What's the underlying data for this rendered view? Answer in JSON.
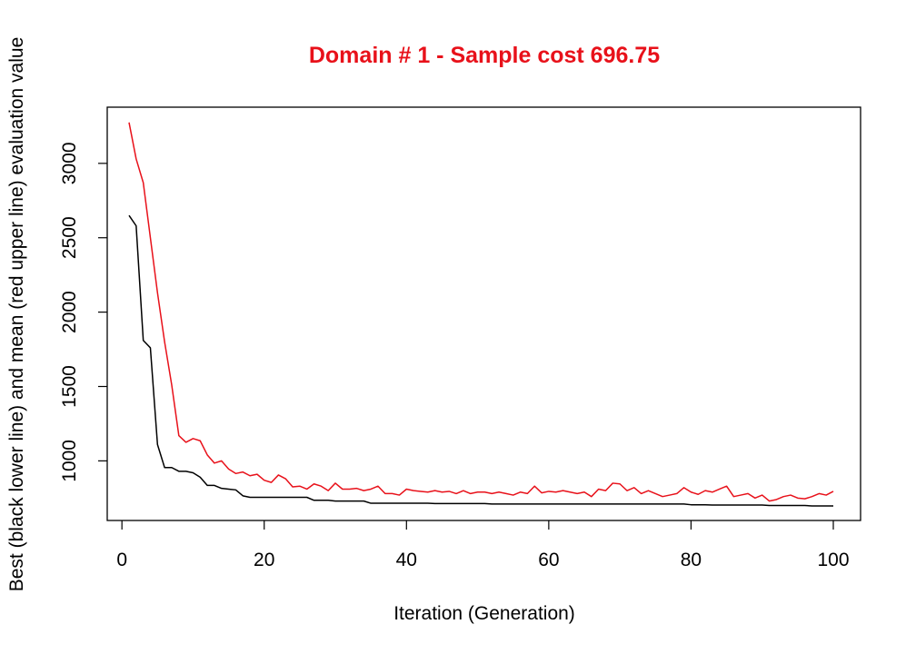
{
  "chart_data": {
    "type": "line",
    "title": "Domain # 1  - Sample cost 696.75",
    "xlabel": "Iteration (Generation)",
    "ylabel": "Best (black lower line) and mean (red upper line) evaluation value",
    "xlim": [
      1,
      100
    ],
    "ylim": [
      697,
      3280
    ],
    "x_ticks": [
      0,
      20,
      40,
      60,
      80,
      100
    ],
    "y_ticks": [
      1000,
      1500,
      2000,
      2500,
      3000
    ],
    "x_tick_labels": [
      "0",
      "20",
      "40",
      "60",
      "80",
      "100"
    ],
    "y_tick_labels": [
      "1000",
      "1500",
      "2000",
      "2500",
      "3000"
    ],
    "grid": false,
    "legend": "none",
    "colors": {
      "title": "#e8111a",
      "mean": "#e8111a",
      "best": "#000000",
      "axis": "#000000"
    },
    "x": [
      1,
      2,
      3,
      4,
      5,
      6,
      7,
      8,
      9,
      10,
      11,
      12,
      13,
      14,
      15,
      16,
      17,
      18,
      19,
      20,
      21,
      22,
      23,
      24,
      25,
      26,
      27,
      28,
      29,
      30,
      31,
      32,
      33,
      34,
      35,
      36,
      37,
      38,
      39,
      40,
      41,
      42,
      43,
      44,
      45,
      46,
      47,
      48,
      49,
      50,
      51,
      52,
      53,
      54,
      55,
      56,
      57,
      58,
      59,
      60,
      61,
      62,
      63,
      64,
      65,
      66,
      67,
      68,
      69,
      70,
      71,
      72,
      73,
      74,
      75,
      76,
      77,
      78,
      79,
      80,
      81,
      82,
      83,
      84,
      85,
      86,
      87,
      88,
      89,
      90,
      91,
      92,
      93,
      94,
      95,
      96,
      97,
      98,
      99,
      100
    ],
    "series": [
      {
        "color": "#e8111a",
        "values": [
          3275,
          3030,
          2870,
          2500,
          2130,
          1800,
          1510,
          1170,
          1125,
          1150,
          1135,
          1040,
          985,
          1000,
          945,
          915,
          925,
          900,
          910,
          870,
          855,
          905,
          880,
          825,
          830,
          810,
          845,
          830,
          800,
          850,
          810,
          810,
          815,
          800,
          810,
          830,
          780,
          780,
          770,
          810,
          800,
          795,
          790,
          800,
          790,
          795,
          780,
          800,
          780,
          790,
          790,
          780,
          790,
          780,
          770,
          790,
          780,
          830,
          785,
          795,
          790,
          800,
          790,
          780,
          790,
          760,
          810,
          800,
          850,
          845,
          800,
          820,
          780,
          800,
          780,
          760,
          770,
          780,
          820,
          790,
          775,
          800,
          790,
          810,
          830,
          760,
          770,
          780,
          750,
          770,
          730,
          740,
          760,
          770,
          750,
          745,
          760,
          780,
          770,
          795
        ]
      },
      {
        "color": "#000000",
        "values": [
          2650,
          2580,
          1810,
          1760,
          1110,
          955,
          955,
          930,
          930,
          920,
          890,
          835,
          835,
          815,
          810,
          805,
          765,
          755,
          755,
          755,
          755,
          755,
          755,
          755,
          755,
          755,
          735,
          735,
          735,
          730,
          730,
          730,
          730,
          730,
          715,
          715,
          715,
          715,
          715,
          715,
          715,
          715,
          715,
          713,
          713,
          713,
          713,
          713,
          713,
          713,
          713,
          710,
          710,
          710,
          710,
          710,
          710,
          710,
          710,
          710,
          710,
          710,
          710,
          710,
          710,
          710,
          710,
          710,
          710,
          710,
          710,
          710,
          710,
          710,
          710,
          710,
          710,
          710,
          710,
          705,
          705,
          705,
          703,
          703,
          703,
          703,
          703,
          703,
          703,
          703,
          700,
          700,
          700,
          700,
          700,
          700,
          697,
          697,
          697,
          697
        ]
      }
    ]
  }
}
